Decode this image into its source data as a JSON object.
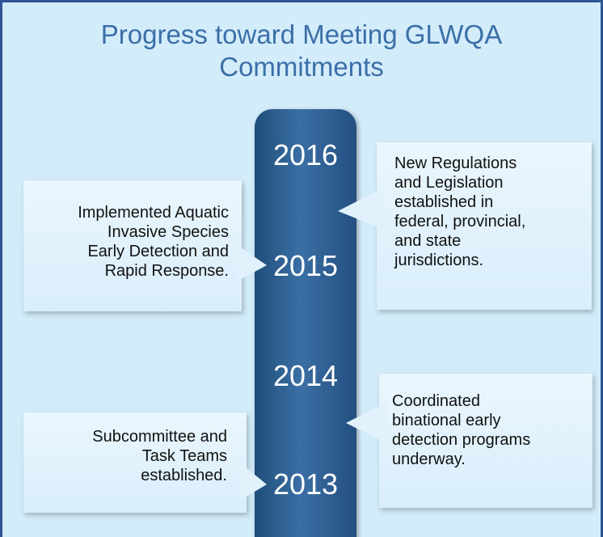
{
  "title": "Progress toward Meeting GLWQA Commitments",
  "years": [
    "2016",
    "2015",
    "2014",
    "2013"
  ],
  "callouts": [
    {
      "side": "left",
      "lines": [
        "Implemented Aquatic",
        "Invasive Species",
        "Early Detection and",
        "Rapid Response."
      ]
    },
    {
      "side": "right",
      "lines": [
        "New Regulations",
        "and Legislation",
        "established in",
        "federal, provincial,",
        "and state",
        "jurisdictions."
      ]
    },
    {
      "side": "left",
      "lines": [
        "Subcommittee and",
        "Task Teams",
        "established."
      ]
    },
    {
      "side": "right",
      "lines": [
        "Coordinated",
        "binational early",
        "detection programs",
        "underway."
      ]
    }
  ]
}
